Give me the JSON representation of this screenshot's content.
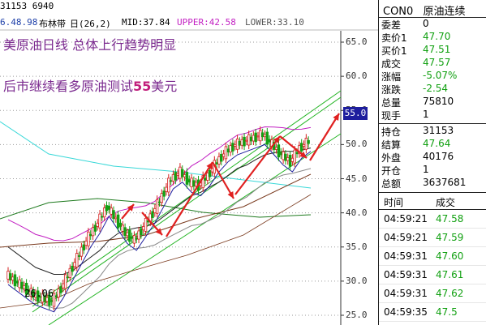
{
  "top_info": "31153 6940",
  "indicator": {
    "prev": "6.48.98",
    "name": "布林带",
    "params": "日(26,2)",
    "mid_label": "MID:37.84",
    "upper_label": "UPPER:42.58",
    "lower_label": "LOWER:33.10"
  },
  "annotations": {
    "line1": "美原油日线 总体上行趋势明显",
    "line2_prefix": "后市继续看多原油测试",
    "line2_num": "55",
    "line2_suffix": "美元"
  },
  "chart_labels": {
    "low_date": "26.06",
    "target_price": "55.0"
  },
  "chart_data": {
    "type": "line",
    "ylim": [
      25,
      65
    ],
    "y_ticks": [
      "65.0",
      "60.0",
      "55.0",
      "50.0",
      "45.0",
      "40.0",
      "35.0",
      "30.0",
      "25.0"
    ],
    "series": [
      {
        "values": [
          31.0,
          30.0,
          29.0,
          28.0,
          27.5,
          27.0,
          29.0,
          31.5,
          34.0,
          36.5,
          38.5,
          41.0,
          39.0,
          37.0,
          36.0,
          38.0,
          40.0,
          42.5,
          45.0,
          46.0,
          44.5,
          44.0,
          45.5,
          47.5,
          49.0,
          50.0,
          50.5,
          51.0,
          51.5,
          50.0,
          48.5,
          47.5,
          49.5,
          50.5
        ]
      },
      {
        "values": [
          35.0,
          34.0,
          33.0,
          32.0,
          31.5,
          31.0,
          31.0,
          31.5,
          32.5,
          33.5,
          34.5,
          36.0,
          37.0,
          37.5,
          37.8,
          38.0,
          38.5,
          39.5,
          40.5,
          41.5,
          42.5,
          43.0,
          43.8,
          44.5,
          45.5,
          46.5,
          47.0,
          47.8,
          48.5,
          48.8,
          49.0,
          49.0,
          49.2,
          49.5
        ]
      }
    ]
  },
  "side": {
    "code": "CON0",
    "name": "原油连续",
    "quotes": [
      {
        "label": "委差",
        "value": "0",
        "cls": "blk"
      },
      {
        "label": "卖价1",
        "value": "47.70",
        "cls": "dn"
      },
      {
        "label": "买价1",
        "value": "47.51",
        "cls": "dn"
      },
      {
        "label": "成交",
        "value": "47.57",
        "cls": "dn"
      },
      {
        "label": "涨幅",
        "value": "-5.07%",
        "cls": "dn"
      },
      {
        "label": "涨跌",
        "value": "-2.54",
        "cls": "dn"
      },
      {
        "label": "总量",
        "value": "75810",
        "cls": "blk"
      },
      {
        "label": "现手",
        "value": "1",
        "cls": "blk"
      }
    ],
    "quotes2": [
      {
        "label": "持仓",
        "value": "31153",
        "cls": "blk"
      },
      {
        "label": "结算",
        "value": "47.64",
        "cls": "dn"
      },
      {
        "label": "外盘",
        "value": "40176",
        "cls": "blk"
      },
      {
        "label": "开仓",
        "value": "1",
        "cls": "blk"
      },
      {
        "label": "总额",
        "value": "3637681",
        "cls": "blk"
      }
    ],
    "trade_head": {
      "time": "时间",
      "price": "成交"
    },
    "trades": [
      {
        "time": "04:59:21",
        "price": "47.58"
      },
      {
        "time": "04:59:21",
        "price": "47.59"
      },
      {
        "time": "04:59:31",
        "price": "47.60"
      },
      {
        "time": "04:59:31",
        "price": "47.61"
      },
      {
        "time": "04:59:31",
        "price": "47.62"
      },
      {
        "time": "04:59:35",
        "price": "47.5"
      }
    ]
  }
}
